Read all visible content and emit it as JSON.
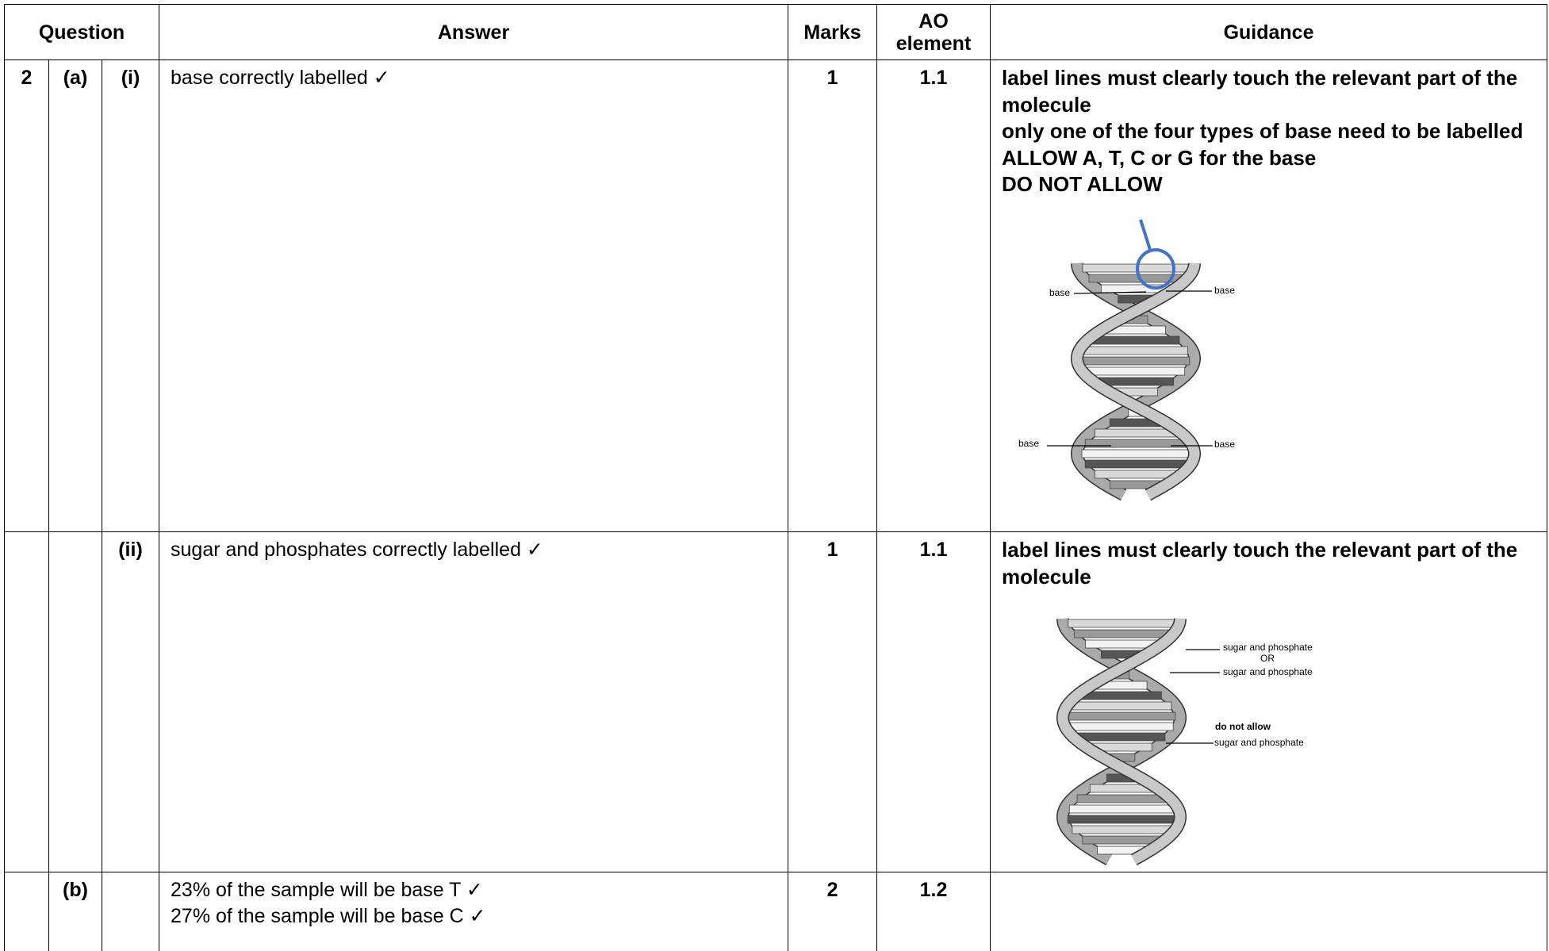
{
  "header": {
    "question": "Question",
    "answer": "Answer",
    "marks": "Marks",
    "ao": "AO element",
    "guidance": "Guidance"
  },
  "rows": [
    {
      "question": "2",
      "part": "(a)",
      "subpart": "(i)",
      "answer": [
        "base correctly labelled ✓"
      ],
      "marks": "1",
      "ao": "1.1",
      "guidance": [
        "label lines must clearly touch the relevant part of the molecule",
        "only one of the four types of base need to be labelled",
        "ALLOW A, T, C or G for the base",
        "DO NOT ALLOW"
      ],
      "diagram": {
        "labels": [
          "base",
          "base",
          "base",
          "base"
        ]
      }
    },
    {
      "subpart": "(ii)",
      "answer": [
        "sugar and phosphates correctly labelled ✓"
      ],
      "marks": "1",
      "ao": "1.1",
      "guidance": [
        "label lines must clearly touch the relevant part of the molecule"
      ],
      "diagram": {
        "labels": [
          "sugar and phosphate",
          "OR",
          "sugar and phosphate",
          "do not allow",
          "sugar and phosphate"
        ]
      }
    },
    {
      "part": "(b)",
      "answer": [
        "23% of the sample will be base T ✓",
        "27% of the sample will be base C ✓"
      ],
      "marks": "2",
      "ao": "1.2"
    }
  ]
}
